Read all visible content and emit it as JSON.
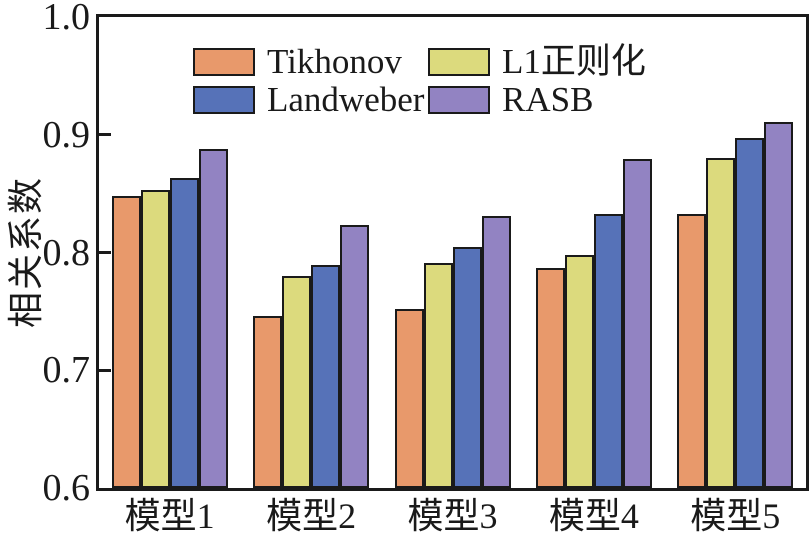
{
  "chart_data": {
    "type": "bar",
    "title": "",
    "xlabel": "",
    "ylabel": "相关系数",
    "categories": [
      "模型1",
      "模型2",
      "模型3",
      "模型4",
      "模型5"
    ],
    "series": [
      {
        "name": "Tikhonov",
        "color": "#E8996B",
        "values": [
          0.848,
          0.746,
          0.752,
          0.787,
          0.833
        ]
      },
      {
        "name": "L1正则化",
        "color": "#DCDA7D",
        "values": [
          0.853,
          0.78,
          0.791,
          0.798,
          0.88
        ]
      },
      {
        "name": "Landweber",
        "color": "#5672B8",
        "values": [
          0.863,
          0.789,
          0.805,
          0.833,
          0.897
        ]
      },
      {
        "name": "RASB",
        "color": "#9283C2",
        "values": [
          0.888,
          0.823,
          0.831,
          0.879,
          0.911
        ]
      }
    ],
    "ylim": [
      0.6,
      1.0
    ],
    "yticks": [
      {
        "label": "1.0",
        "value": 1.0
      },
      {
        "label": "0.9",
        "value": 0.9
      },
      {
        "label": "0.8",
        "value": 0.8
      },
      {
        "label": "0.7",
        "value": 0.7
      },
      {
        "label": "0.6",
        "value": 0.6
      }
    ],
    "grid": false,
    "legend_position": "upper area inside plot, two columns, no frame",
    "legend_columns": [
      [
        "Tikhonov",
        "Landweber"
      ],
      [
        "L1正则化",
        "RASB"
      ]
    ],
    "bar_border_color": "#1a1a1a",
    "axis_color": "#1a1a1a",
    "background_color": "#ffffff"
  }
}
